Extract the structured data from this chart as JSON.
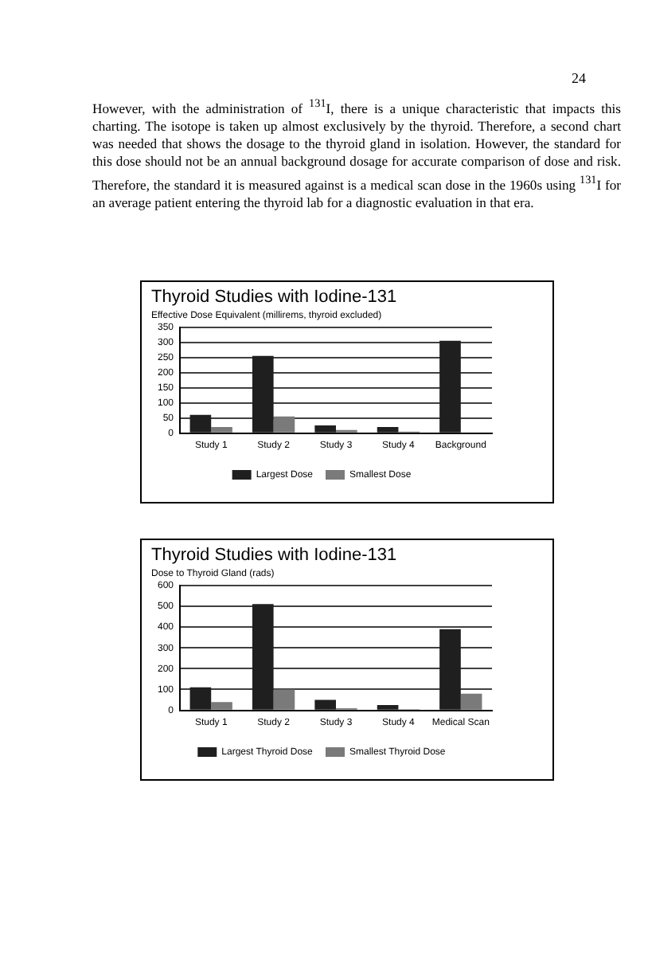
{
  "chart_data": [
    {
      "type": "other",
      "annotations": [
        "24",
        "However, with the administration of $^{131}$I, there is a unique characteristic that impacts this charting. The isotope is taken up almost exclusively by the thyroid. Therefore, a second chart was needed that shows the dosage to the thyroid gland in isolation. However, the standard for this dose should not be an annual background dosage for accurate comparison of dose and risk. Therefore, the standard it is measured against is a medical scan dose in the 1960s using $^{131}$I for an average patient entering the thyroid lab for a diagnostic evaluation in that era."
      ]
    },
    {
      "type": "bar",
      "title": "Thyroid Studies with Iodine-131",
      "subtitle": "Effective Dose Equivalent (millirems, thyroid excluded)",
      "categories": [
        "Study 1",
        "Study 2",
        "Study 3",
        "Study 4",
        "Background"
      ],
      "series": [
        {
          "name": "Largest Dose",
          "color": "#1f1f1f",
          "values": [
            60,
            255,
            25,
            20,
            305
          ]
        },
        {
          "name": "Smallest Dose",
          "color": "#7a7a7a",
          "values": [
            20,
            55,
            10,
            5,
            null
          ]
        }
      ],
      "ylim": [
        0,
        350
      ],
      "yticks": [
        0,
        50,
        100,
        150,
        200,
        250,
        300,
        350
      ],
      "grid": "y",
      "legend": "bottom"
    },
    {
      "type": "bar",
      "title": "Thyroid Studies with Iodine-131",
      "subtitle": "Dose to Thyroid Gland (rads)",
      "categories": [
        "Study 1",
        "Study 2",
        "Study 3",
        "Study 4",
        "Medical Scan"
      ],
      "series": [
        {
          "name": "Largest Thyroid Dose",
          "color": "#1f1f1f",
          "values": [
            110,
            510,
            50,
            25,
            390
          ]
        },
        {
          "name": "Smallest Thyroid Dose",
          "color": "#7a7a7a",
          "values": [
            40,
            100,
            10,
            5,
            80
          ]
        }
      ],
      "ylim": [
        0,
        600
      ],
      "yticks": [
        0,
        100,
        200,
        300,
        400,
        500,
        600
      ],
      "grid": "y",
      "legend": "bottom"
    }
  ]
}
